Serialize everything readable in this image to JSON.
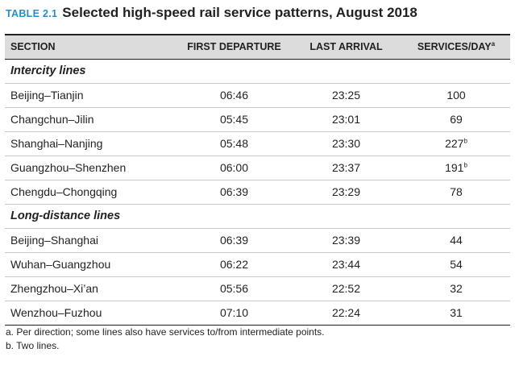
{
  "table": {
    "label": "TABLE 2.1",
    "title": "Selected high-speed rail service patterns, August 2018",
    "columns": [
      "SECTION",
      "FIRST DEPARTURE",
      "LAST ARRIVAL",
      "SERVICES/DAY"
    ],
    "services_header_sup": "a",
    "groups": [
      {
        "name": "Intercity lines",
        "rows": [
          {
            "section": "Beijing–Tianjin",
            "first": "06:46",
            "last": "23:25",
            "services": "100",
            "sup": ""
          },
          {
            "section": "Changchun–Jilin",
            "first": "05:45",
            "last": "23:01",
            "services": "69",
            "sup": ""
          },
          {
            "section": "Shanghai–Nanjing",
            "first": "05:48",
            "last": "23:30",
            "services": "227",
            "sup": "b"
          },
          {
            "section": "Guangzhou–Shenzhen",
            "first": "06:00",
            "last": "23:37",
            "services": "191",
            "sup": "b"
          },
          {
            "section": "Chengdu–Chongqing",
            "first": "06:39",
            "last": "23:29",
            "services": "78",
            "sup": ""
          }
        ]
      },
      {
        "name": "Long-distance lines",
        "rows": [
          {
            "section": "Beijing–Shanghai",
            "first": "06:39",
            "last": "23:39",
            "services": "44",
            "sup": ""
          },
          {
            "section": "Wuhan–Guangzhou",
            "first": "06:22",
            "last": "23:44",
            "services": "54",
            "sup": ""
          },
          {
            "section": "Zhengzhou–Xi’an",
            "first": "05:56",
            "last": "22:52",
            "services": "32",
            "sup": ""
          },
          {
            "section": "Wenzhou–Fuzhou",
            "first": "07:10",
            "last": "22:24",
            "services": "31",
            "sup": ""
          }
        ]
      }
    ],
    "notes": [
      "a. Per direction; some lines also have services to/from intermediate points.",
      "b. Two lines."
    ]
  }
}
